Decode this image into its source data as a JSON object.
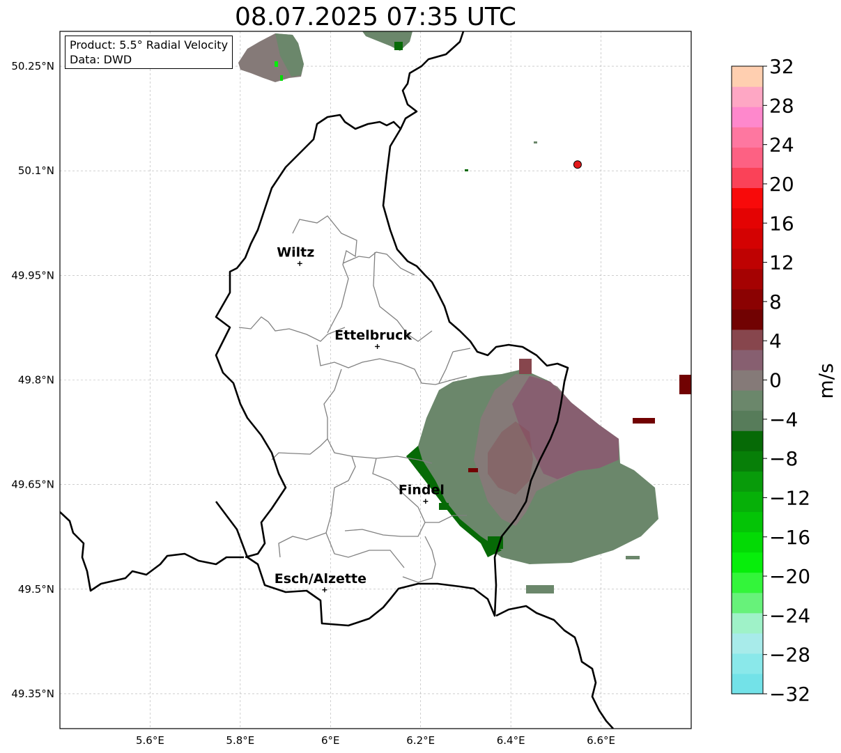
{
  "title": "08.07.2025 07:35 UTC",
  "info_box": {
    "product": "Product: 5.5° Radial Velocity",
    "data": "Data: DWD"
  },
  "lat_labels": [
    "50.25°N",
    "50.1°N",
    "49.95°N",
    "49.8°N",
    "49.65°N",
    "49.5°N",
    "49.35°N"
  ],
  "lat_values": [
    50.25,
    50.1,
    49.95,
    49.8,
    49.65,
    49.5,
    49.35
  ],
  "lon_labels": [
    "5.6°E",
    "5.8°E",
    "6°E",
    "6.2°E",
    "6.4°E",
    "6.6°E"
  ],
  "lon_values": [
    5.6,
    5.8,
    6.0,
    6.2,
    6.4,
    6.6
  ],
  "map_extent": {
    "lon": [
      5.4,
      6.8
    ],
    "lat": [
      49.3,
      50.3
    ]
  },
  "cities": [
    {
      "name": "Wiltz",
      "lon": 5.932,
      "lat": 49.967
    },
    {
      "name": "Ettelbruck",
      "lon": 6.104,
      "lat": 49.848
    },
    {
      "name": "Findel",
      "lon": 6.211,
      "lat": 49.626
    },
    {
      "name": "Esch/Alzette",
      "lon": 5.987,
      "lat": 49.499
    }
  ],
  "radar_site": {
    "lon": 6.548,
    "lat": 50.109,
    "color": "#e31a1c"
  },
  "colorbar": {
    "label": "m/s",
    "tick_labels": [
      "32",
      "28",
      "24",
      "20",
      "16",
      "12",
      "8",
      "4",
      "0",
      "−4",
      "−8",
      "−12",
      "−16",
      "−20",
      "−24",
      "−28",
      "−32"
    ],
    "ticks": [
      32,
      28,
      24,
      20,
      16,
      12,
      8,
      4,
      0,
      -4,
      -8,
      -12,
      -16,
      -20,
      -24,
      -28,
      -32
    ],
    "range": [
      -32,
      32
    ],
    "colors_bottom_to_top": [
      "#73e2e8",
      "#8ae8ea",
      "#a8ebea",
      "#9ff2c8",
      "#67f27a",
      "#33f53a",
      "#07ee0b",
      "#03da05",
      "#04c406",
      "#06b008",
      "#089b0a",
      "#077f08",
      "#066a06",
      "#577c5a",
      "#6b876b",
      "#857a78",
      "#875f70",
      "#87464d",
      "#710202",
      "#8b0202",
      "#a50202",
      "#bf0202",
      "#d40202",
      "#e40303",
      "#f80a0a",
      "#fa4258",
      "#fd6183",
      "#fe77a0",
      "#fe88cc",
      "#fea7c4",
      "#ffcfb0"
    ]
  },
  "colors": {
    "border": "#000000",
    "admin_border": "#808080",
    "grid": "#b0b0b0"
  }
}
